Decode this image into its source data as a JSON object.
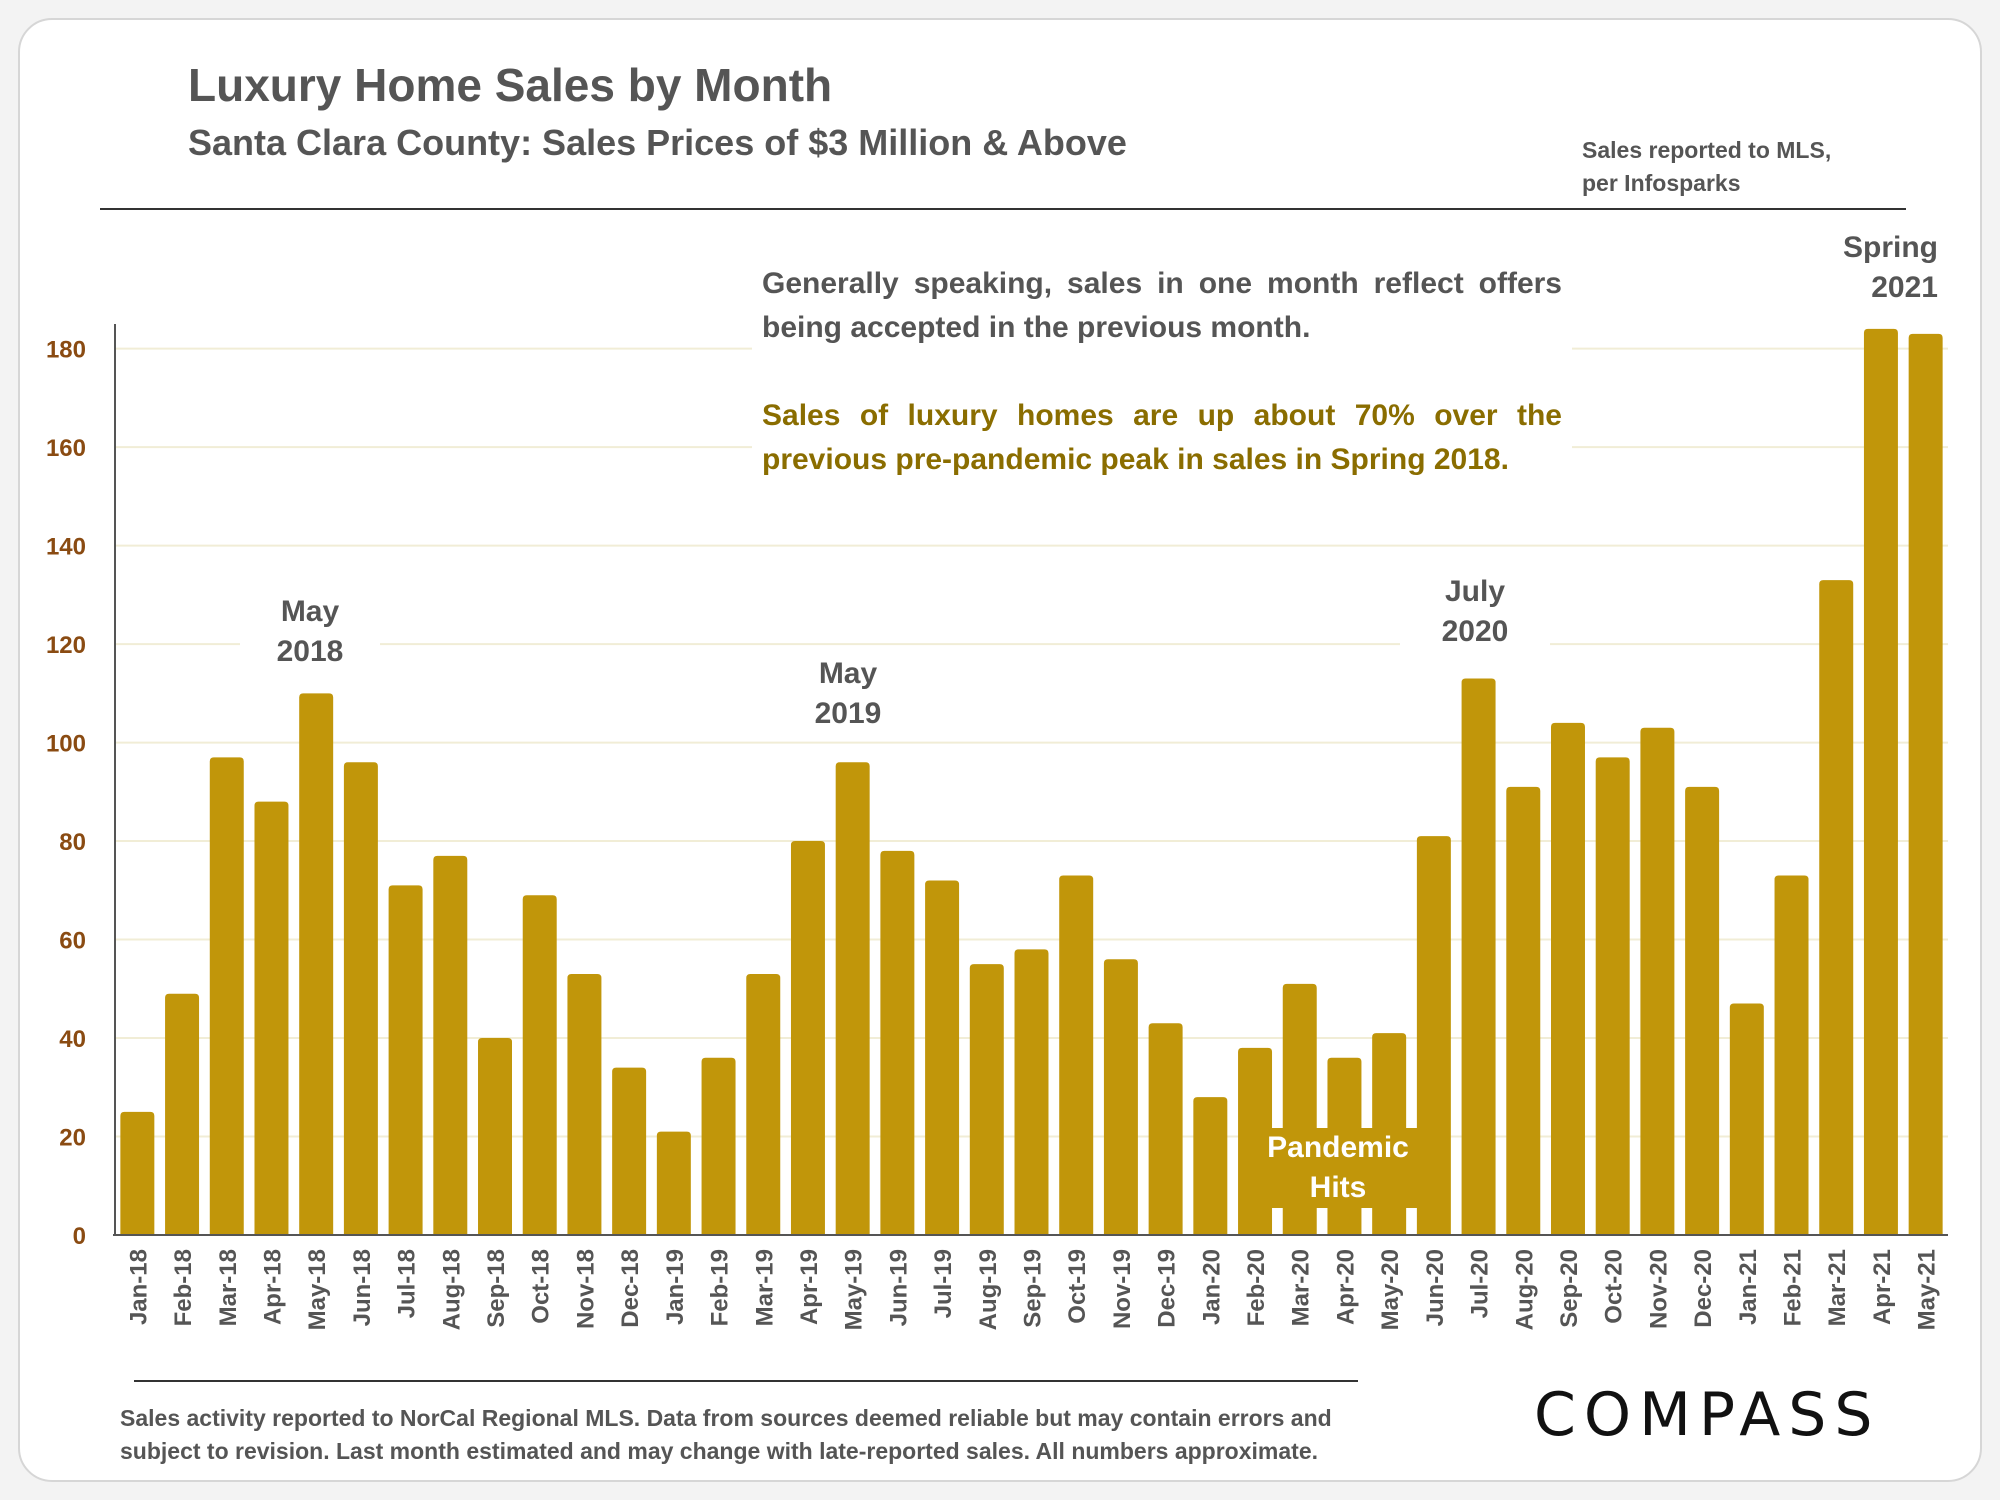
{
  "header": {
    "title": "Luxury Home Sales by Month",
    "subtitle": "Santa Clara County: Sales Prices of $3 Million & Above",
    "source": "Sales reported to MLS,\nper Infosparks"
  },
  "notes": {
    "general": "Generally speaking, sales in one month reflect offers being accepted in the previous month.",
    "highlight": "Sales of luxury homes are up about 70% over the previous pre-pandemic peak in sales in Spring 2018."
  },
  "callouts": {
    "may2018": "May\n2018",
    "may2019": "May\n2019",
    "july2020": "July\n2020",
    "spring2021": "Spring\n2021",
    "pandemic": "Pandemic\nHits"
  },
  "footer": {
    "note": "Sales activity reported to NorCal Regional MLS. Data from sources deemed reliable but may contain errors and\nsubject to revision. Last month estimated and may change with late-reported sales. All numbers approximate.",
    "logo": "COMPASS"
  },
  "colors": {
    "bar": "#c1960a",
    "axis_labels": "#8a4b12",
    "highlight_text": "#8a6d00",
    "text": "#555555"
  },
  "chart_data": {
    "type": "bar",
    "categories": [
      "Jan-18",
      "Feb-18",
      "Mar-18",
      "Apr-18",
      "May-18",
      "Jun-18",
      "Jul-18",
      "Aug-18",
      "Sep-18",
      "Oct-18",
      "Nov-18",
      "Dec-18",
      "Jan-19",
      "Feb-19",
      "Mar-19",
      "Apr-19",
      "May-19",
      "Jun-19",
      "Jul-19",
      "Aug-19",
      "Sep-19",
      "Oct-19",
      "Nov-19",
      "Dec-19",
      "Jan-20",
      "Feb-20",
      "Mar-20",
      "Apr-20",
      "May-20",
      "Jun-20",
      "Jul-20",
      "Aug-20",
      "Sep-20",
      "Oct-20",
      "Nov-20",
      "Dec-20",
      "Jan-21",
      "Feb-21",
      "Mar-21",
      "Apr-21",
      "May-21"
    ],
    "values": [
      25,
      49,
      97,
      88,
      110,
      96,
      71,
      77,
      40,
      69,
      53,
      34,
      21,
      36,
      53,
      80,
      96,
      78,
      72,
      55,
      58,
      73,
      56,
      43,
      28,
      38,
      51,
      36,
      41,
      81,
      113,
      91,
      104,
      97,
      103,
      91,
      47,
      73,
      133,
      184,
      183
    ],
    "ylim": [
      0,
      185
    ],
    "yticks": [
      0,
      20,
      40,
      60,
      80,
      100,
      120,
      140,
      160,
      180
    ],
    "grid": true,
    "xlabel": "",
    "ylabel": ""
  }
}
